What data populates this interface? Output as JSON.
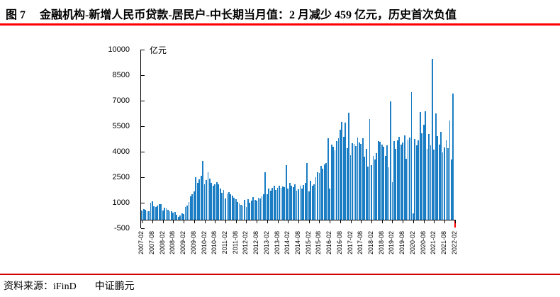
{
  "header": {
    "title": "图 7　  金融机构-新增人民币贷款-居民户-中长期当月值：2 月减少 459 亿元，历史首次负值"
  },
  "footer": {
    "source": "资料来源：iFinD",
    "company": "中证鹏元"
  },
  "colors": {
    "title_rule": "#FF0000",
    "footer_rule": "#D40000",
    "bar_blue": "#1B7EC4",
    "bar_negative_red": "#FF0000",
    "axis": "#000000"
  },
  "chart_data": {
    "type": "bar",
    "title": "",
    "unit_label": "亿元",
    "xlabel": "",
    "ylabel": "",
    "ylim": [
      -500,
      10000
    ],
    "yticks": [
      10000,
      8500,
      7000,
      5500,
      4000,
      2500,
      1000,
      -500
    ],
    "grid": false,
    "legend": "none",
    "x_start": "2007-02",
    "x_frequency": "monthly",
    "xtick_every_n_months": 6,
    "xtick_labels": [
      "2007-02",
      "2007-08",
      "2008-02",
      "2008-08",
      "2009-02",
      "2009-08",
      "2010-02",
      "2010-08",
      "2011-02",
      "2011-08",
      "2012-02",
      "2012-08",
      "2013-02",
      "2013-08",
      "2014-02",
      "2014-08",
      "2015-02",
      "2015-08",
      "2016-02",
      "2016-08",
      "2017-02",
      "2017-08",
      "2018-02",
      "2018-08",
      "2019-02",
      "2019-08",
      "2020-02",
      "2020-08",
      "2021-02",
      "2021-08",
      "2022-02"
    ],
    "bar_color": "#1B7EC4",
    "negative_bar_color": "#FF0000",
    "values": [
      550,
      620,
      580,
      520,
      490,
      1000,
      1100,
      800,
      730,
      830,
      900,
      900,
      560,
      700,
      650,
      600,
      520,
      480,
      430,
      460,
      300,
      150,
      250,
      380,
      320,
      760,
      850,
      1050,
      1380,
      1500,
      1650,
      2480,
      2150,
      2380,
      2600,
      3450,
      2100,
      2350,
      2800,
      2400,
      2150,
      2000,
      2100,
      2200,
      2100,
      1850,
      1600,
      1750,
      1250,
      1550,
      1620,
      1500,
      1400,
      1300,
      1200,
      1050,
      950,
      880,
      820,
      1150,
      760,
      1220,
      1000,
      1120,
      1320,
      1180,
      1120,
      1300,
      1230,
      1380,
      1520,
      2800,
      1500,
      1820,
      1700,
      1880,
      2020,
      1760,
      1870,
      2000,
      1880,
      1960,
      1900,
      3200,
      1850,
      2180,
      2000,
      1920,
      2080,
      1720,
      1780,
      2000,
      1850,
      2040,
      2150,
      3340,
      1680,
      2280,
      2000,
      2080,
      2480,
      2800,
      2750,
      3150,
      3000,
      3250,
      3350,
      4783,
      1820,
      4397,
      4280,
      4076,
      4639,
      4773,
      5286,
      5741,
      4891,
      5692,
      4217,
      6293,
      3804,
      4503,
      4441,
      4326,
      4833,
      4544,
      4470,
      4786,
      3710,
      4178,
      3112,
      5910,
      3220,
      3770,
      3543,
      3923,
      4634,
      4576,
      4415,
      4309,
      3730,
      4391,
      3079,
      6969,
      2226,
      4605,
      4165,
      4677,
      4858,
      4417,
      4540,
      4943,
      3587,
      4689,
      4824,
      7491,
      371,
      4738,
      4389,
      4662,
      6349,
      5068,
      5571,
      6362,
      4153,
      5049,
      4392,
      9448,
      4113,
      6239,
      4918,
      4426,
      5156,
      3974,
      4259,
      4667,
      4221,
      5821,
      3558,
      7424,
      -459
    ],
    "highlight": {
      "label": "2022-02",
      "value": -459
    }
  }
}
